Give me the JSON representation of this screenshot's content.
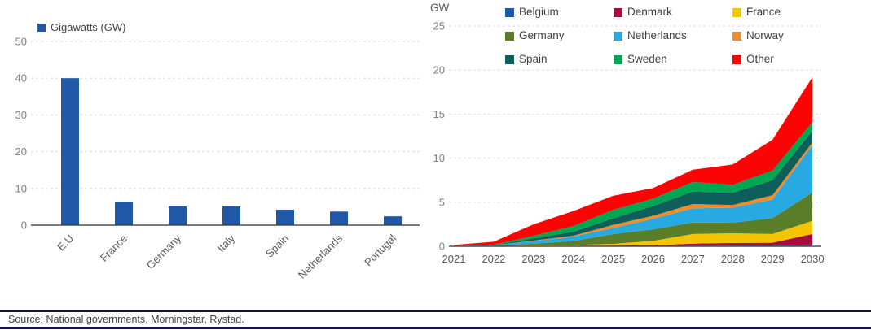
{
  "page": {
    "source_note": "Source: National governments, Morningstar, Rystad."
  },
  "chart_data": [
    {
      "type": "bar",
      "legend_label": "Gigawatts (GW)",
      "categories": [
        "E.U",
        "France",
        "Germany",
        "Italy",
        "Spain",
        "Netherlands",
        "Portugal"
      ],
      "values": [
        40,
        6.4,
        5.1,
        5.1,
        4.2,
        3.7,
        2.4
      ],
      "title": "",
      "xlabel": "",
      "ylabel": "",
      "ylim": [
        0,
        50
      ],
      "yticks": [
        0,
        10,
        20,
        30,
        40,
        50
      ],
      "bar_color": "#2057A7",
      "grid": "horizontal dashed",
      "x_label_rotation": -45,
      "legend_position": "top-left"
    },
    {
      "type": "area",
      "stacked": true,
      "title": "",
      "xlabel": "",
      "ylabel": "GW",
      "x": [
        2021,
        2022,
        2023,
        2024,
        2025,
        2026,
        2027,
        2028,
        2029,
        2030
      ],
      "ylim": [
        0,
        25
      ],
      "yticks": [
        0,
        5,
        10,
        15,
        20,
        25
      ],
      "grid": "horizontal dashed",
      "legend_position": "top, 3 columns",
      "legend_order": [
        "Belgium",
        "Denmark",
        "France",
        "Germany",
        "Netherlands",
        "Norway",
        "Spain",
        "Sweden",
        "Other"
      ],
      "series": [
        {
          "name": "Belgium",
          "color": "#2057A7",
          "values": [
            0,
            0.01,
            0.02,
            0.02,
            0.03,
            0.03,
            0.05,
            0.08,
            0.1,
            0.2
          ]
        },
        {
          "name": "Denmark",
          "color": "#A50D3C",
          "values": [
            0,
            0.01,
            0.02,
            0.03,
            0.05,
            0.08,
            0.25,
            0.3,
            0.3,
            1.2
          ]
        },
        {
          "name": "France",
          "color": "#F5C400",
          "values": [
            0,
            0.02,
            0.05,
            0.1,
            0.2,
            0.5,
            1.1,
            1.1,
            1.0,
            1.5
          ]
        },
        {
          "name": "Germany",
          "color": "#5A7D2A",
          "values": [
            0,
            0.02,
            0.2,
            0.45,
            1.1,
            1.3,
            1.3,
            1.2,
            1.8,
            3.2
          ]
        },
        {
          "name": "Netherlands",
          "color": "#27AAE1",
          "values": [
            0.05,
            0.05,
            0.3,
            0.5,
            0.7,
            1.2,
            1.6,
            1.7,
            2.1,
            5.4
          ]
        },
        {
          "name": "Norway",
          "color": "#F28C28",
          "values": [
            0,
            0.01,
            0.05,
            0.1,
            0.35,
            0.35,
            0.5,
            0.3,
            0.5,
            0.3
          ]
        },
        {
          "name": "Spain",
          "color": "#0E5F5B",
          "values": [
            0,
            0.02,
            0.25,
            0.45,
            0.75,
            1.1,
            1.4,
            1.4,
            1.7,
            1.3
          ]
        },
        {
          "name": "Sweden",
          "color": "#00A651",
          "values": [
            0,
            0.03,
            0.3,
            0.65,
            0.95,
            0.85,
            1.1,
            0.9,
            1.1,
            1.0
          ]
        },
        {
          "name": "Other",
          "color": "#FB0404",
          "values": [
            0.1,
            0.35,
            1.3,
            1.7,
            1.6,
            1.2,
            1.4,
            2.3,
            3.5,
            5.1
          ]
        }
      ]
    }
  ]
}
